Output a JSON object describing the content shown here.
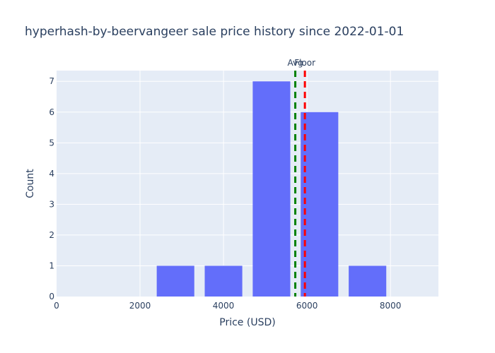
{
  "chart_data": {
    "type": "bar",
    "title": "hyperhash-by-beervangeer sale price history since 2022-01-01",
    "xlabel": "Price (USD)",
    "ylabel": "Count",
    "xlim": [
      0,
      9150
    ],
    "ylim": [
      0,
      7.35
    ],
    "x_ticks": [
      0,
      2000,
      4000,
      6000,
      8000
    ],
    "x_tick_labels": [
      "0",
      "2000",
      "4000",
      "6000",
      "8000"
    ],
    "y_ticks": [
      0,
      1,
      2,
      3,
      4,
      5,
      6,
      7
    ],
    "y_tick_labels": [
      "0",
      "1",
      "2",
      "3",
      "4",
      "5",
      "6",
      "7"
    ],
    "bins": [
      {
        "x0": 2400,
        "x1": 3300,
        "count": 1
      },
      {
        "x0": 3550,
        "x1": 4450,
        "count": 1
      },
      {
        "x0": 4700,
        "x1": 5600,
        "count": 7
      },
      {
        "x0": 5850,
        "x1": 6750,
        "count": 6
      },
      {
        "x0": 7000,
        "x1": 7900,
        "count": 1
      }
    ],
    "reference_lines": [
      {
        "label": "Avg",
        "x": 5720,
        "color": "#008000"
      },
      {
        "label": "Floor",
        "x": 5950,
        "color": "#ff0000"
      }
    ],
    "bar_color": "#636efa",
    "plot_bg": "#e5ecf6",
    "grid": true
  }
}
